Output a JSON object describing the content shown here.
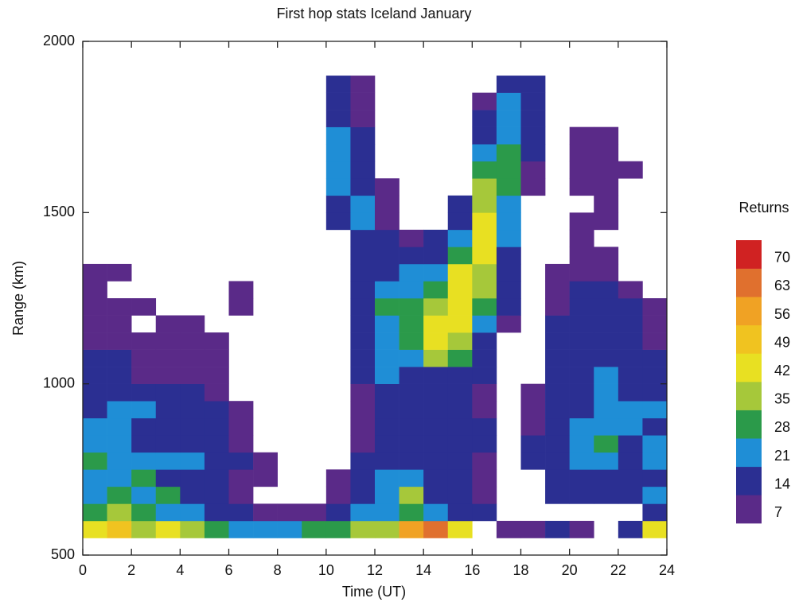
{
  "chart_data": {
    "type": "heatmap",
    "title": "First hop stats Iceland January",
    "x_label": "Time (UT)",
    "y_label": "Range (km)",
    "xlim": [
      0,
      24
    ],
    "ylim": [
      500,
      2000
    ],
    "xticks": [
      0,
      2,
      4,
      6,
      8,
      10,
      12,
      14,
      16,
      18,
      20,
      22,
      24
    ],
    "yticks": [
      500,
      1000,
      1500,
      2000
    ],
    "xbins": [
      0,
      1,
      2,
      3,
      4,
      5,
      6,
      7,
      8,
      9,
      10,
      11,
      12,
      13,
      14,
      15,
      16,
      17,
      18,
      19,
      20,
      21,
      22,
      23,
      24
    ],
    "ybins": [
      550,
      600,
      650,
      700,
      750,
      800,
      850,
      900,
      950,
      1000,
      1050,
      1100,
      1150,
      1200,
      1250,
      1300,
      1350,
      1400,
      1450,
      1500,
      1550,
      1600,
      1650,
      1700,
      1750,
      1800,
      1850,
      1900
    ],
    "values": [
      [
        40,
        45,
        35,
        40,
        30,
        25,
        20,
        15,
        20,
        25,
        25,
        30,
        35,
        55,
        60,
        40,
        null,
        7,
        7,
        14,
        7,
        null,
        14,
        40
      ],
      [
        28,
        35,
        28,
        21,
        21,
        14,
        10,
        7,
        7,
        7,
        14,
        21,
        21,
        28,
        21,
        14,
        10,
        null,
        null,
        null,
        null,
        null,
        null,
        14
      ],
      [
        21,
        28,
        21,
        28,
        14,
        14,
        7,
        null,
        null,
        null,
        7,
        14,
        21,
        35,
        14,
        10,
        7,
        null,
        null,
        14,
        14,
        14,
        14,
        21
      ],
      [
        21,
        21,
        28,
        14,
        14,
        14,
        7,
        7,
        null,
        null,
        7,
        14,
        21,
        21,
        14,
        10,
        7,
        null,
        null,
        14,
        14,
        14,
        10,
        14
      ],
      [
        28,
        21,
        21,
        21,
        21,
        14,
        10,
        7,
        null,
        null,
        null,
        10,
        14,
        14,
        14,
        14,
        7,
        null,
        14,
        14,
        21,
        21,
        14,
        21
      ],
      [
        21,
        21,
        14,
        14,
        14,
        14,
        7,
        null,
        null,
        null,
        null,
        7,
        14,
        14,
        14,
        14,
        10,
        null,
        10,
        14,
        21,
        28,
        14,
        21
      ],
      [
        21,
        21,
        14,
        14,
        10,
        10,
        7,
        null,
        null,
        null,
        null,
        7,
        14,
        14,
        14,
        14,
        10,
        null,
        7,
        14,
        21,
        21,
        21,
        14
      ],
      [
        14,
        21,
        21,
        14,
        14,
        10,
        7,
        null,
        null,
        null,
        null,
        7,
        14,
        14,
        14,
        14,
        7,
        null,
        7,
        14,
        14,
        21,
        21,
        21
      ],
      [
        14,
        14,
        14,
        14,
        10,
        7,
        null,
        null,
        null,
        null,
        null,
        7,
        14,
        14,
        14,
        14,
        7,
        null,
        7,
        14,
        14,
        21,
        14,
        14
      ],
      [
        14,
        10,
        7,
        7,
        7,
        7,
        null,
        null,
        null,
        null,
        null,
        10,
        21,
        14,
        14,
        14,
        10,
        null,
        null,
        14,
        14,
        21,
        14,
        14
      ],
      [
        14,
        10,
        7,
        7,
        7,
        7,
        null,
        null,
        null,
        null,
        null,
        14,
        21,
        21,
        35,
        28,
        14,
        null,
        null,
        10,
        14,
        14,
        14,
        14
      ],
      [
        7,
        7,
        7,
        7,
        7,
        7,
        null,
        null,
        null,
        null,
        null,
        14,
        21,
        28,
        42,
        35,
        14,
        null,
        null,
        10,
        14,
        14,
        14,
        7
      ],
      [
        7,
        7,
        null,
        7,
        7,
        null,
        null,
        null,
        null,
        null,
        null,
        14,
        21,
        28,
        42,
        42,
        21,
        7,
        null,
        10,
        14,
        14,
        10,
        7
      ],
      [
        7,
        7,
        7,
        null,
        null,
        null,
        7,
        null,
        null,
        null,
        null,
        14,
        28,
        28,
        35,
        42,
        28,
        10,
        null,
        7,
        10,
        10,
        10,
        7
      ],
      [
        7,
        null,
        null,
        null,
        null,
        null,
        7,
        null,
        null,
        null,
        null,
        14,
        21,
        21,
        28,
        42,
        35,
        14,
        null,
        7,
        10,
        10,
        7,
        null
      ],
      [
        7,
        7,
        null,
        null,
        null,
        null,
        null,
        null,
        null,
        null,
        null,
        10,
        14,
        21,
        21,
        42,
        35,
        14,
        null,
        7,
        7,
        7,
        null,
        null
      ],
      [
        null,
        null,
        null,
        null,
        null,
        null,
        null,
        null,
        null,
        null,
        null,
        10,
        10,
        14,
        14,
        28,
        42,
        14,
        null,
        null,
        7,
        7,
        null,
        null
      ],
      [
        null,
        null,
        null,
        null,
        null,
        null,
        null,
        null,
        null,
        null,
        null,
        10,
        10,
        7,
        10,
        21,
        42,
        21,
        null,
        null,
        7,
        null,
        null,
        null
      ],
      [
        null,
        null,
        null,
        null,
        null,
        null,
        null,
        null,
        null,
        null,
        14,
        21,
        7,
        null,
        null,
        14,
        42,
        21,
        null,
        null,
        7,
        7,
        null,
        null
      ],
      [
        null,
        null,
        null,
        null,
        null,
        null,
        null,
        null,
        null,
        null,
        14,
        21,
        7,
        null,
        null,
        14,
        35,
        21,
        null,
        null,
        null,
        7,
        null,
        null
      ],
      [
        null,
        null,
        null,
        null,
        null,
        null,
        null,
        null,
        null,
        null,
        21,
        14,
        7,
        null,
        null,
        null,
        35,
        28,
        7,
        null,
        7,
        7,
        null,
        null
      ],
      [
        null,
        null,
        null,
        null,
        null,
        null,
        null,
        null,
        null,
        null,
        21,
        14,
        null,
        null,
        null,
        null,
        28,
        28,
        7,
        null,
        7,
        7,
        7,
        null
      ],
      [
        null,
        null,
        null,
        null,
        null,
        null,
        null,
        null,
        null,
        null,
        21,
        10,
        null,
        null,
        null,
        null,
        21,
        28,
        10,
        null,
        7,
        7,
        null,
        null
      ],
      [
        null,
        null,
        null,
        null,
        null,
        null,
        null,
        null,
        null,
        null,
        21,
        10,
        null,
        null,
        null,
        null,
        14,
        21,
        10,
        null,
        7,
        7,
        null,
        null
      ],
      [
        null,
        null,
        null,
        null,
        null,
        null,
        null,
        null,
        null,
        null,
        14,
        7,
        null,
        null,
        null,
        null,
        10,
        21,
        10,
        null,
        null,
        null,
        null,
        null
      ],
      [
        null,
        null,
        null,
        null,
        null,
        null,
        null,
        null,
        null,
        null,
        14,
        7,
        null,
        null,
        null,
        null,
        7,
        21,
        14,
        null,
        null,
        null,
        null,
        null
      ],
      [
        null,
        null,
        null,
        null,
        null,
        null,
        null,
        null,
        null,
        null,
        14,
        7,
        null,
        null,
        null,
        null,
        null,
        14,
        14,
        null,
        null,
        null,
        null,
        null
      ]
    ],
    "colorbar": {
      "title": "Returns",
      "ticks": [
        7,
        14,
        21,
        28,
        35,
        42,
        49,
        56,
        63,
        70
      ],
      "colors": [
        "#5a2a88",
        "#2b2f92",
        "#1f8ed6",
        "#2b9a4a",
        "#a6c83a",
        "#e8e022",
        "#f0c320",
        "#f0a224",
        "#e0702e",
        "#d02222"
      ]
    }
  }
}
